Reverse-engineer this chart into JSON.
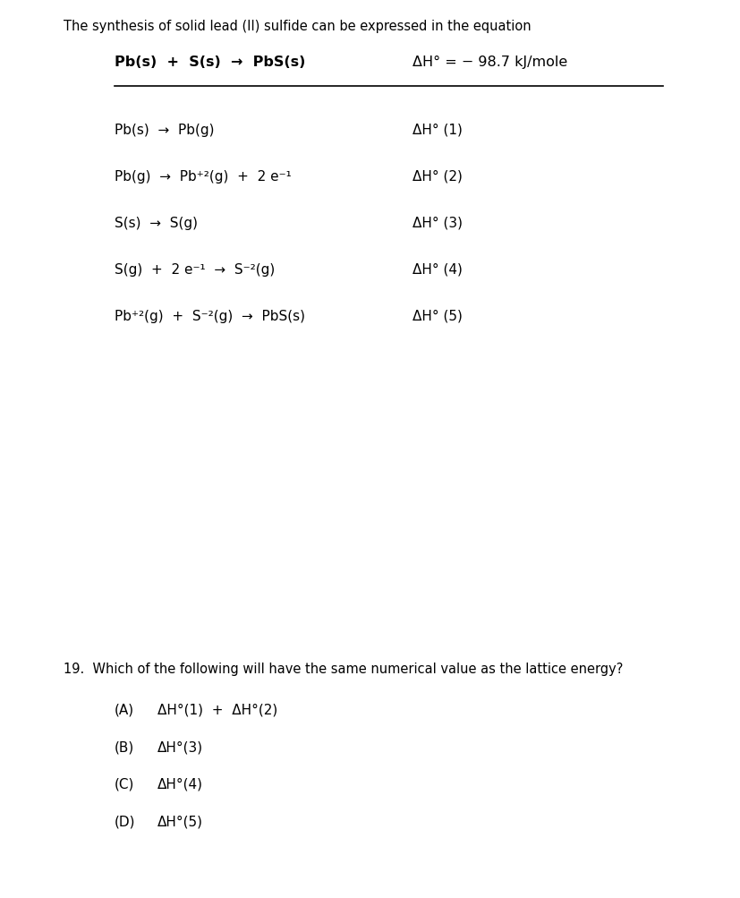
{
  "bg_color": "#ffffff",
  "intro_text": "The synthesis of solid lead (II) sulfide can be expressed in the equation",
  "header_eq_left": "Pb(s)  +  S(s)  →  PbS(s)",
  "header_eq_right": "ΔH° = − 98.7 kJ/mole",
  "reactions": [
    {
      "left": "Pb(s)  →  Pb(g)",
      "right": "ΔH° (1)"
    },
    {
      "left": "Pb(g)  →  Pb⁺²(g)  +  2 e⁻¹",
      "right": "ΔH° (2)"
    },
    {
      "left": "S(s)  →  S(g)",
      "right": "ΔH° (3)"
    },
    {
      "left": "S(g)  +  2 e⁻¹  →  S⁻²(g)",
      "right": "ΔH° (4)"
    },
    {
      "left": "Pb⁺²(g)  +  S⁻²(g)  →  PbS(s)",
      "right": "ΔH° (5)"
    }
  ],
  "question_text": "19.  Which of the following will have the same numerical value as the lattice energy?",
  "choices": [
    {
      "label": "(A)",
      "text": "ΔH°(1)  +  ΔH°(2)"
    },
    {
      "label": "(B)",
      "text": "ΔH°(3)"
    },
    {
      "label": "(C)",
      "text": "ΔH°(4)"
    },
    {
      "label": "(D)",
      "text": "ΔH°(5)"
    }
  ],
  "font_size_intro": 10.5,
  "font_size_header": 11.5,
  "font_size_reaction": 11,
  "font_size_question": 10.5,
  "font_size_choice": 11
}
